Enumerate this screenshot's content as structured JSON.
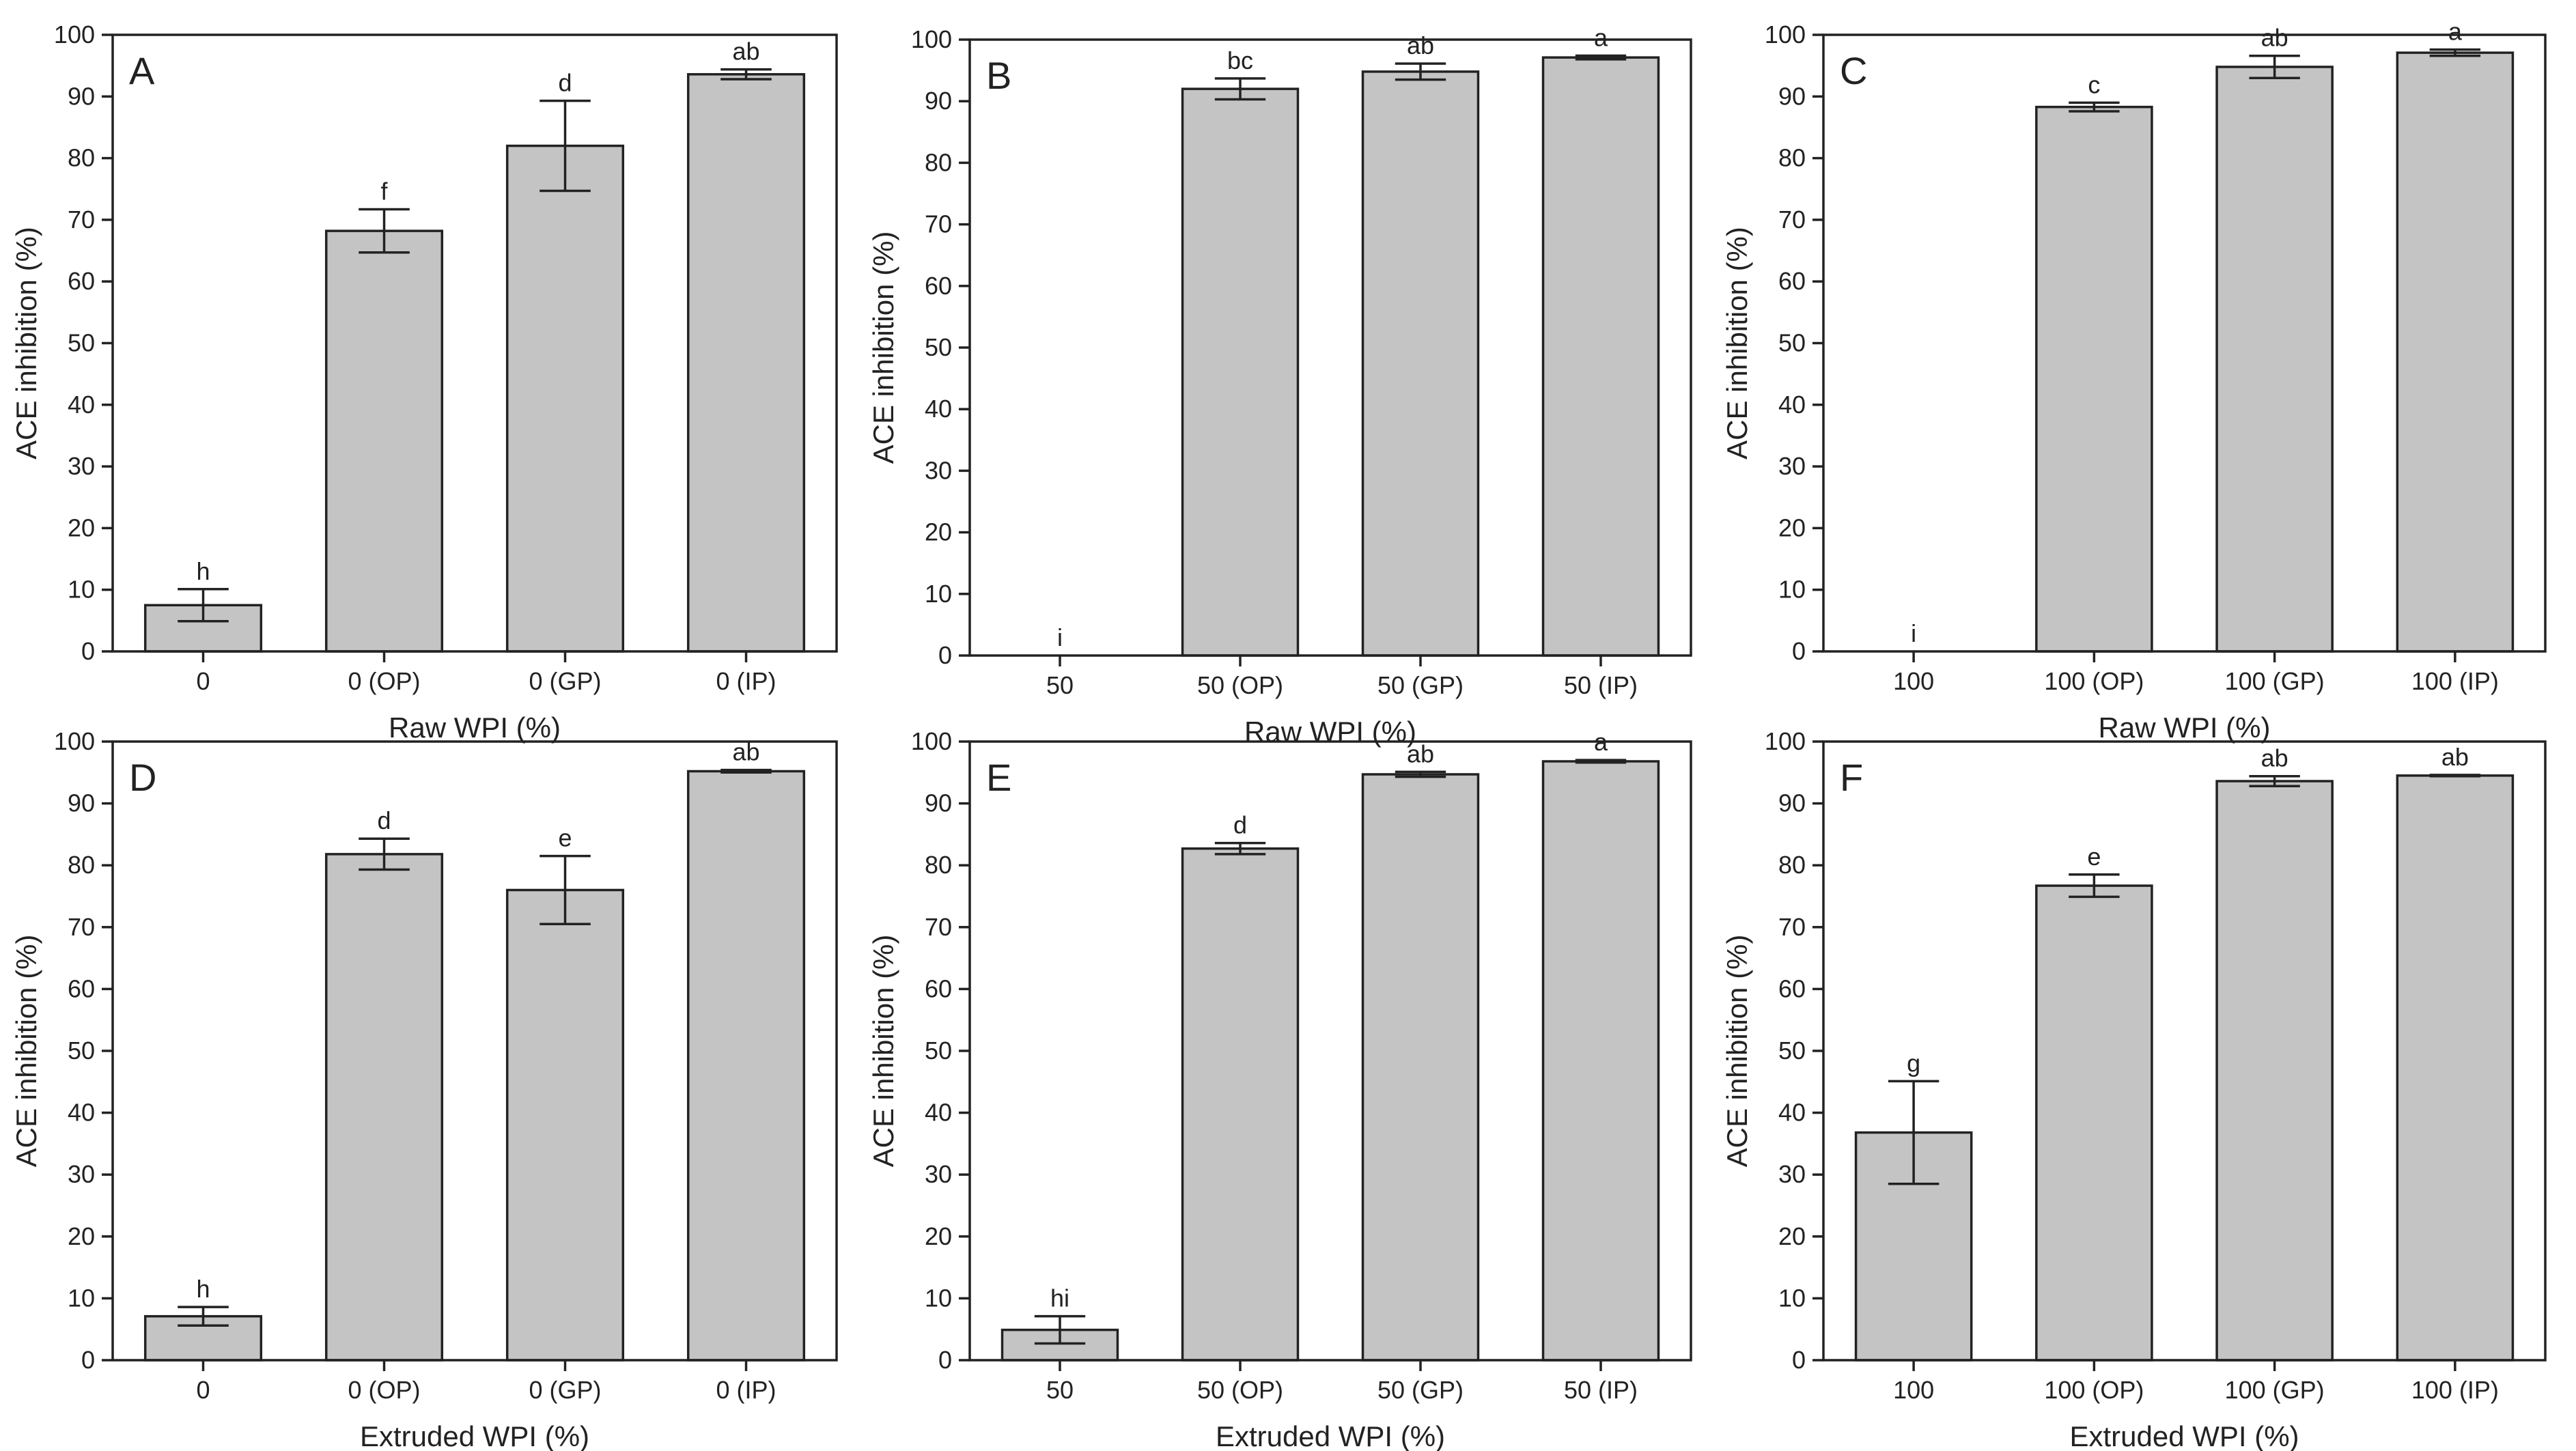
{
  "colors": {
    "bar_fill": "#c4c4c4",
    "bar_stroke": "#222222",
    "axis": "#222222",
    "error_bar": "#222222"
  },
  "chart_data": [
    {
      "type": "bar",
      "panel_label": "A",
      "xlabel": "Raw WPI (%)",
      "ylabel": "ACE inhibition (%)",
      "ylim": [
        0,
        100
      ],
      "yticks": [
        0,
        10,
        20,
        30,
        40,
        50,
        60,
        70,
        80,
        90,
        100
      ],
      "categories": [
        "0",
        "0 (OP)",
        "0 (GP)",
        "0 (IP)"
      ],
      "values": [
        7.5,
        68.2,
        82.0,
        93.6
      ],
      "errors": [
        2.6,
        3.5,
        7.3,
        0.8
      ],
      "significance": [
        "h",
        "f",
        "d",
        "ab"
      ]
    },
    {
      "type": "bar",
      "panel_label": "B",
      "xlabel": "Raw WPI (%)",
      "ylabel": "ACE inhibition (%)",
      "ylim": [
        0,
        100
      ],
      "yticks": [
        0,
        10,
        20,
        30,
        40,
        50,
        60,
        70,
        80,
        90,
        100
      ],
      "categories": [
        "50",
        "50 (OP)",
        "50 (GP)",
        "50 (IP)"
      ],
      "values": [
        0,
        92.0,
        94.8,
        97.1
      ],
      "errors": [
        0,
        1.7,
        1.3,
        0.3
      ],
      "significance": [
        "i",
        "bc",
        "ab",
        "a"
      ]
    },
    {
      "type": "bar",
      "panel_label": "C",
      "xlabel": "Raw WPI (%)",
      "ylabel": "ACE inhibition (%)",
      "ylim": [
        0,
        100
      ],
      "yticks": [
        0,
        10,
        20,
        30,
        40,
        50,
        60,
        70,
        80,
        90,
        100
      ],
      "categories": [
        "100",
        "100 (OP)",
        "100 (GP)",
        "100 (IP)"
      ],
      "values": [
        0,
        88.3,
        94.8,
        97.1
      ],
      "errors": [
        0,
        0.7,
        1.8,
        0.5
      ],
      "significance": [
        "i",
        "c",
        "ab",
        "a"
      ]
    },
    {
      "type": "bar",
      "panel_label": "D",
      "xlabel": "Extruded WPI (%)",
      "ylabel": "ACE inhibition (%)",
      "ylim": [
        0,
        100
      ],
      "yticks": [
        0,
        10,
        20,
        30,
        40,
        50,
        60,
        70,
        80,
        90,
        100
      ],
      "categories": [
        "0",
        "0 (OP)",
        "0 (GP)",
        "0 (IP)"
      ],
      "values": [
        7.1,
        81.8,
        76.0,
        95.2
      ],
      "errors": [
        1.5,
        2.5,
        5.5,
        0.2
      ],
      "significance": [
        "h",
        "d",
        "e",
        "ab"
      ]
    },
    {
      "type": "bar",
      "panel_label": "E",
      "xlabel": "Extruded WPI (%)",
      "ylabel": "ACE inhibition (%)",
      "ylim": [
        0,
        100
      ],
      "yticks": [
        0,
        10,
        20,
        30,
        40,
        50,
        60,
        70,
        80,
        90,
        100
      ],
      "categories": [
        "50",
        "50 (OP)",
        "50 (GP)",
        "50 (IP)"
      ],
      "values": [
        4.9,
        82.7,
        94.7,
        96.8
      ],
      "errors": [
        2.2,
        0.9,
        0.4,
        0.2
      ],
      "significance": [
        "hi",
        "d",
        "ab",
        "a"
      ]
    },
    {
      "type": "bar",
      "panel_label": "F",
      "xlabel": "Extruded WPI (%)",
      "ylabel": "ACE inhibition (%)",
      "ylim": [
        0,
        100
      ],
      "yticks": [
        0,
        10,
        20,
        30,
        40,
        50,
        60,
        70,
        80,
        90,
        100
      ],
      "categories": [
        "100",
        "100 (OP)",
        "100 (GP)",
        "100 (IP)"
      ],
      "values": [
        36.8,
        76.7,
        93.6,
        94.5
      ],
      "errors": [
        8.3,
        1.8,
        0.8,
        0.1
      ],
      "significance": [
        "g",
        "e",
        "ab",
        "ab"
      ]
    }
  ]
}
